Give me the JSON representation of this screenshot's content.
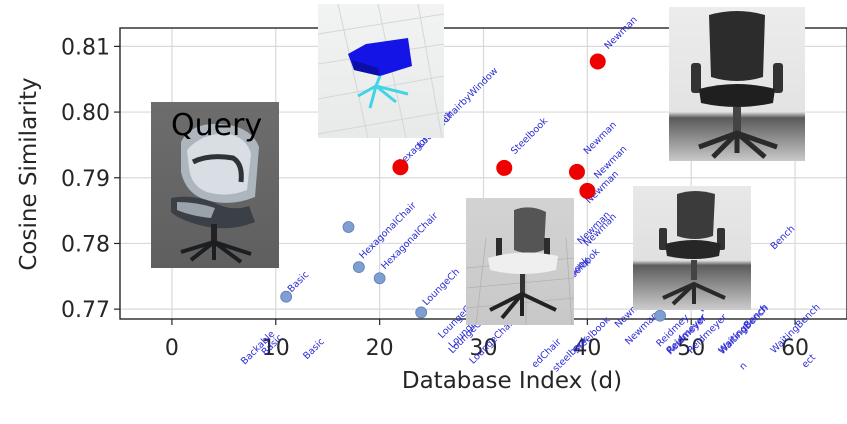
{
  "chart_data": {
    "type": "scatter",
    "title": "",
    "xlabel": "Database Index (d)",
    "ylabel": "Cosine Similarity",
    "xlim": [
      -5,
      65
    ],
    "ylim": [
      0.7685,
      0.8128
    ],
    "xticks": [
      0,
      10,
      20,
      30,
      40,
      50,
      60
    ],
    "xtick_labels": [
      "0",
      "10",
      "20",
      "30",
      "40",
      "50",
      "60"
    ],
    "yticks": [
      0.77,
      0.78,
      0.79,
      0.8,
      0.81
    ],
    "ytick_labels": [
      "0.77",
      "0.78",
      "0.79",
      "0.80",
      "0.81"
    ],
    "grid": true,
    "colors": {
      "highlight": "#ee0000",
      "normal": "#7f9fd3",
      "annotation": "#2b2bd6"
    },
    "highlighted_points": [
      {
        "x": 22,
        "y": 0.7916,
        "label": "HexagonalChair"
      },
      {
        "x": 32,
        "y": 0.7915,
        "label": "Steelbook"
      },
      {
        "x": 39,
        "y": 0.7909,
        "label": "LoungeChairbyNewman"
      },
      {
        "x": 40,
        "y": 0.788,
        "label": "LoungeChairbyNewman"
      },
      {
        "x": 41,
        "y": 0.8077,
        "label": "LoungeChairbyNewman"
      }
    ],
    "points": [
      {
        "x": 11,
        "y": 0.7719,
        "label": "Basic"
      },
      {
        "x": 17,
        "y": 0.7825,
        "label": "HexagonalChair"
      },
      {
        "x": 18,
        "y": 0.7764,
        "label": "HexagonalChair"
      },
      {
        "x": 20,
        "y": 0.7747,
        "label": "HexagonalChair"
      },
      {
        "x": 24,
        "y": 0.7695,
        "label": "LoungeChairbyWindow"
      },
      {
        "x": 47,
        "y": 0.769,
        "label": "WaitingBench"
      }
    ],
    "annotations": [
      {
        "text": "LoungeChairbyWindow",
        "x": 24,
        "y": 0.7945
      },
      {
        "text": "Newman",
        "x": 42,
        "y": 0.8095
      },
      {
        "text": "Steelbook",
        "x": 33,
        "y": 0.7935
      },
      {
        "text": "Newman",
        "x": 40,
        "y": 0.7935
      },
      {
        "text": "Newman",
        "x": 41,
        "y": 0.7898
      },
      {
        "text": "Newman",
        "x": 40,
        "y": 0.7795
      },
      {
        "text": "HexagonalChair",
        "x": 22,
        "y": 0.7915
      },
      {
        "text": "Steelbook",
        "x": 37,
        "y": 0.7723
      },
      {
        "text": "Basic",
        "x": 11.5,
        "y": 0.7725
      },
      {
        "text": "LoungeChairbyWindow",
        "x": 27,
        "y": 0.7632
      },
      {
        "text": "LoungeChairbyWindow",
        "x": 29,
        "y": 0.7616
      },
      {
        "text": "Steelbook",
        "x": 38,
        "y": 0.7736
      },
      {
        "text": "Newman",
        "x": 43,
        "y": 0.7671
      },
      {
        "text": "Reidmeyer",
        "x": 48,
        "y": 0.7632
      },
      {
        "text": "Reidmeyer",
        "x": 50,
        "y": 0.7632
      },
      {
        "text": "WaitingBench",
        "x": 53,
        "y": 0.7632
      },
      {
        "text": "WaitingBench",
        "x": 58,
        "y": 0.7632
      },
      {
        "text": "Bench",
        "x": 58,
        "y": 0.779
      },
      {
        "text": "Basic",
        "x": 9,
        "y": 0.7629
      },
      {
        "text": "Backable",
        "x": 7,
        "y": 0.7615
      },
      {
        "text": "Basic",
        "x": 13,
        "y": 0.7623
      },
      {
        "text": "HexagonalChair",
        "x": 18.4,
        "y": 0.7776
      },
      {
        "text": "HexagonalChair",
        "x": 20.5,
        "y": 0.776
      },
      {
        "text": "LoungeCh",
        "x": 24.5,
        "y": 0.7705
      },
      {
        "text": "LoungeChairbyWi",
        "x": 26,
        "y": 0.7655
      },
      {
        "text": "LoungeChairbyWi",
        "x": 27,
        "y": 0.764
      },
      {
        "text": "edChair",
        "x": 35,
        "y": 0.761
      },
      {
        "text": "steelbook",
        "x": 37,
        "y": 0.7604
      },
      {
        "text": "Steelbook",
        "x": 39,
        "y": 0.7632
      },
      {
        "text": "Newman",
        "x": 40.2,
        "y": 0.786
      },
      {
        "text": "Newman",
        "x": 39.4,
        "y": 0.7798
      },
      {
        "text": "k",
        "x": 40,
        "y": 0.7765
      },
      {
        "text": "Wa",
        "x": 51,
        "y": 0.7694
      },
      {
        "text": "Reidmey",
        "x": 47,
        "y": 0.7642
      },
      {
        "text": "Reidmeyer",
        "x": 48,
        "y": 0.763
      },
      {
        "text": "Newman",
        "x": 44,
        "y": 0.7645
      },
      {
        "text": "WaitingBench",
        "x": 53,
        "y": 0.763
      },
      {
        "text": "ect",
        "x": 61,
        "y": 0.761
      },
      {
        "text": "n",
        "x": 55,
        "y": 0.7607
      }
    ]
  },
  "query_label": "Query"
}
